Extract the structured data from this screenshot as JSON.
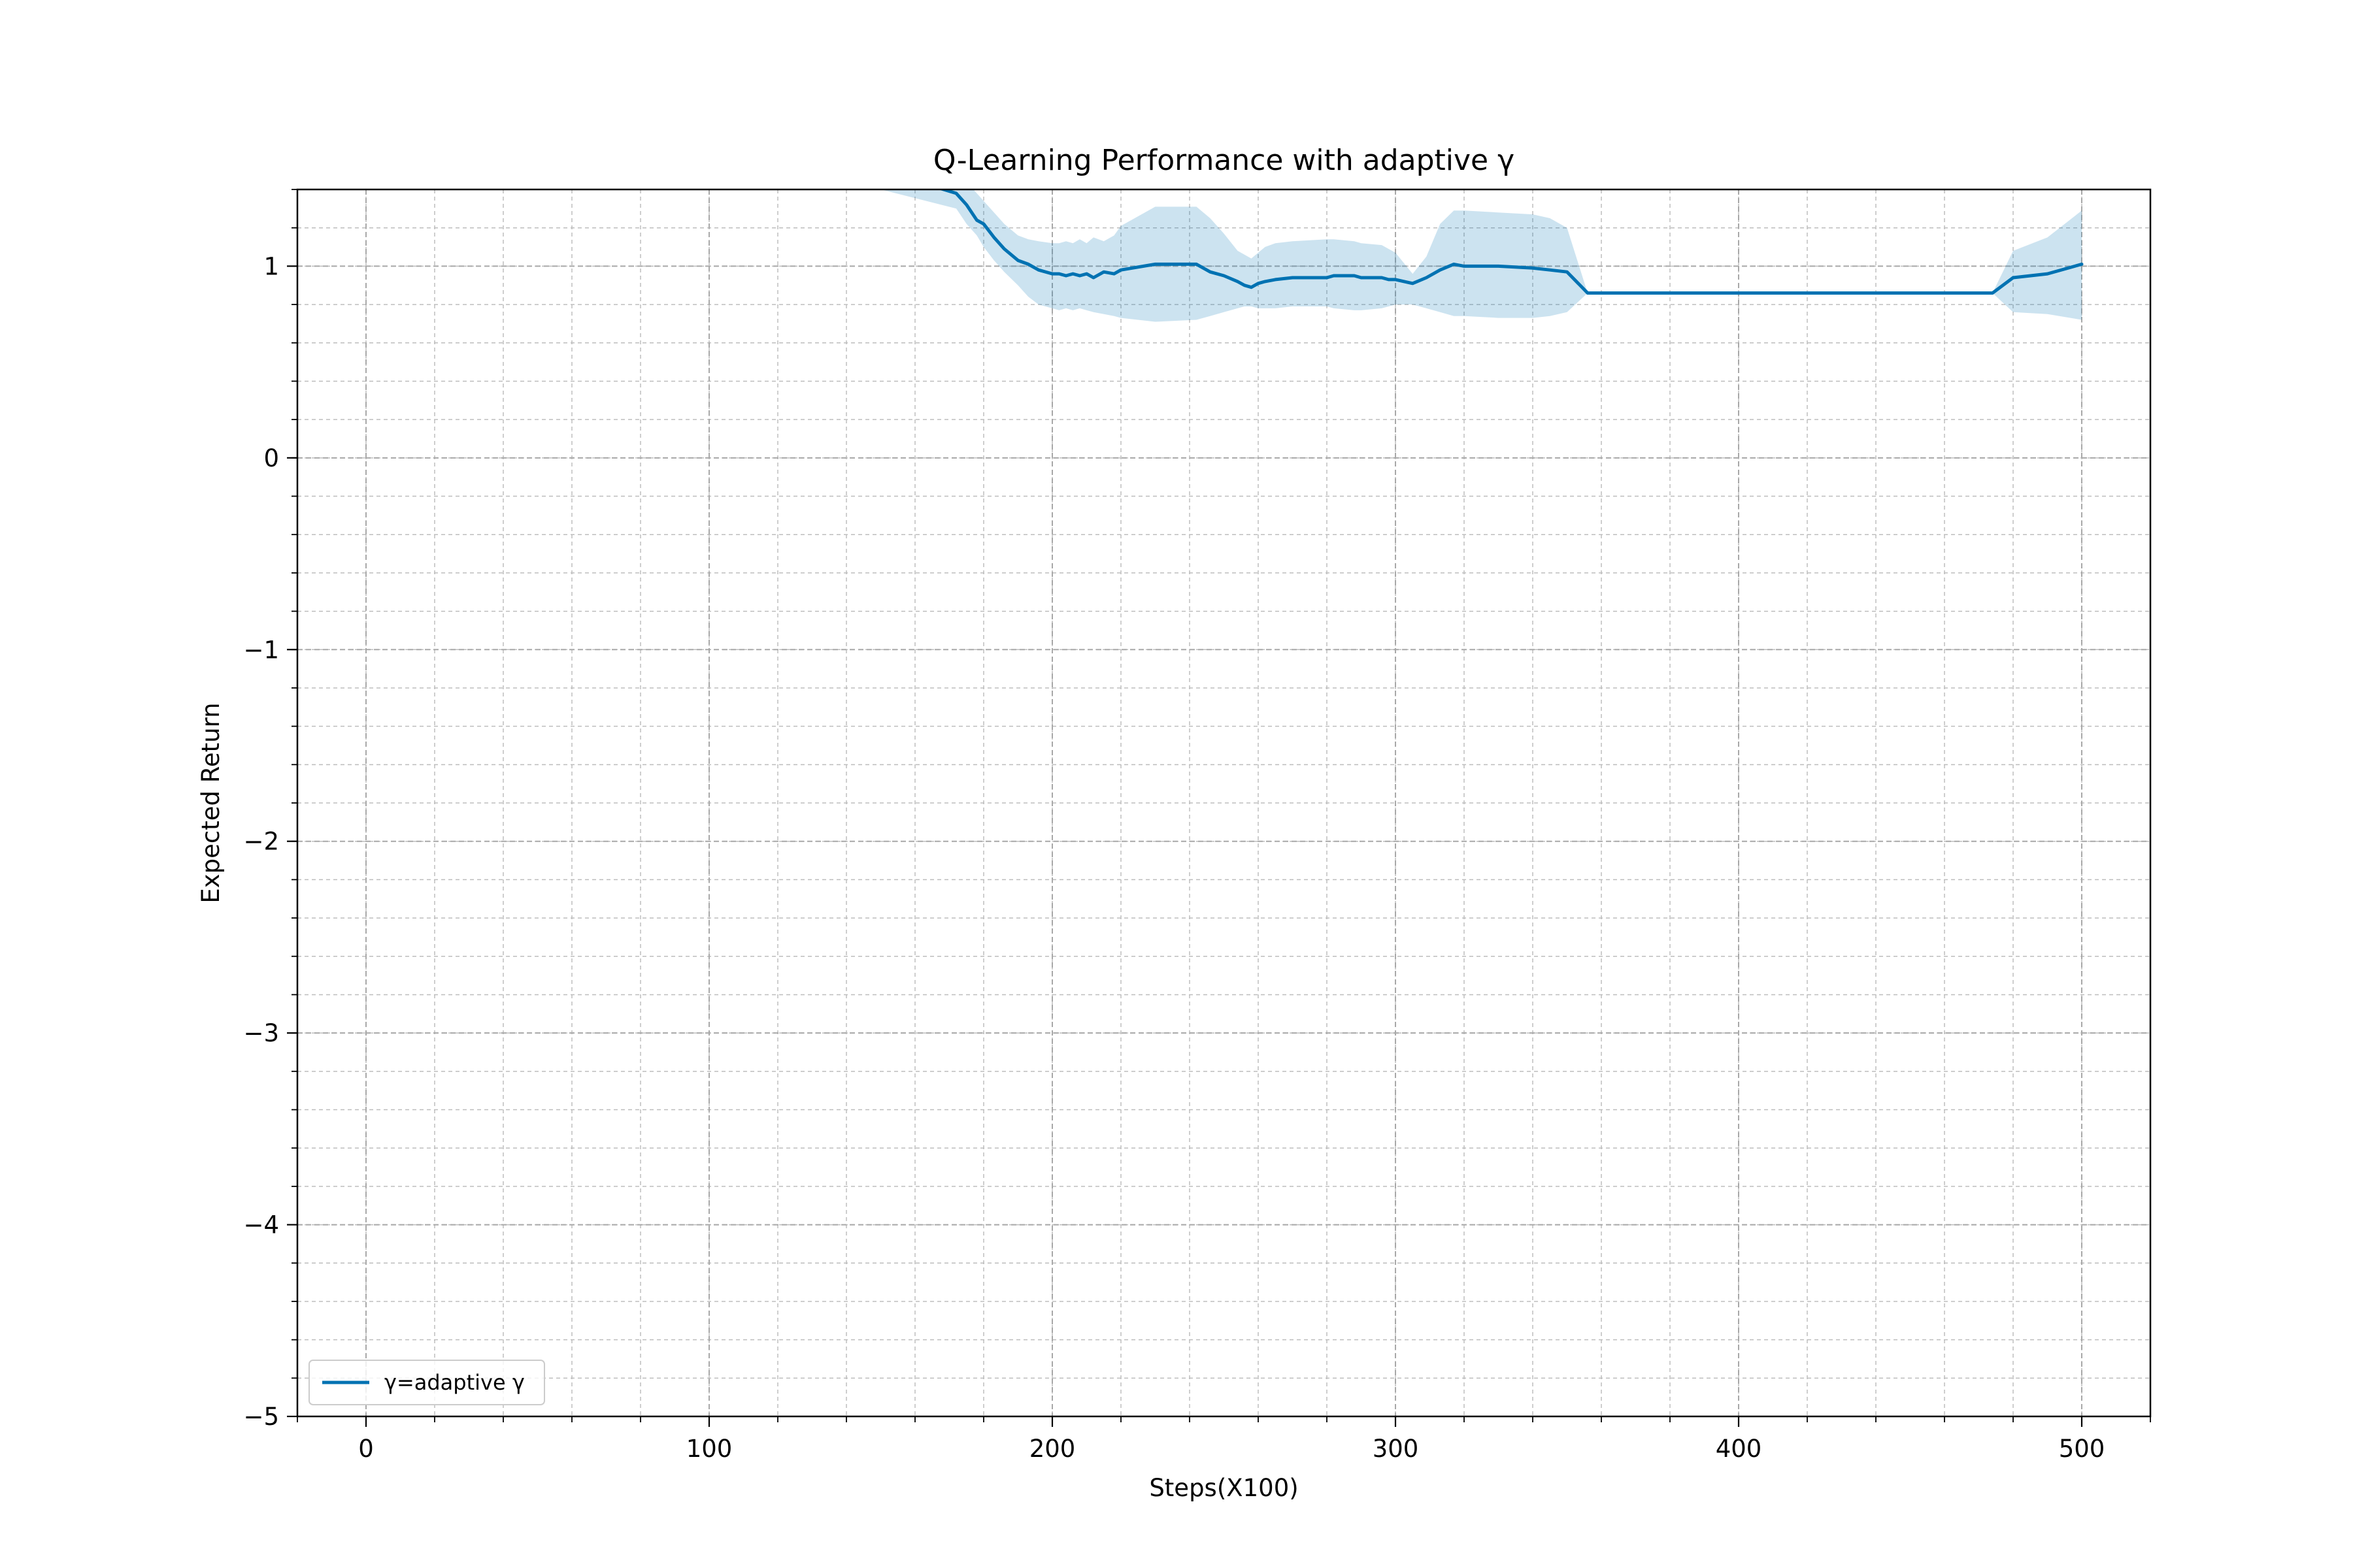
{
  "chart_data": {
    "type": "line",
    "title": "Q-Learning Performance with adaptive γ",
    "xlabel": "Steps(X100)",
    "ylabel": "Expected Return",
    "xlim": [
      -20,
      520
    ],
    "ylim": [
      -5,
      1.4
    ],
    "x_ticks": [
      0,
      100,
      200,
      300,
      400,
      500
    ],
    "x_tick_labels": [
      "0",
      "100",
      "200",
      "300",
      "400",
      "500"
    ],
    "y_ticks": [
      -5,
      -4,
      -3,
      -2,
      -1,
      0,
      1
    ],
    "y_tick_labels": [
      "−5",
      "−4",
      "−3",
      "−2",
      "−1",
      "0",
      "1"
    ],
    "x_minor_step": 20,
    "y_minor_step": 0.2,
    "grid": "major and minor, dashed",
    "legend": {
      "location": "lower-left",
      "entries": [
        "γ=adaptive γ"
      ]
    },
    "series": [
      {
        "name": "γ=adaptive γ",
        "color": "#0072B2",
        "band_color": "#0072B2",
        "x": [
          150,
          172,
          175,
          178,
          180,
          183,
          186,
          190,
          193,
          196,
          200,
          202,
          204,
          206,
          208,
          210,
          212,
          215,
          218,
          220,
          230,
          242,
          246,
          250,
          254,
          256,
          258,
          260,
          262,
          265,
          270,
          280,
          282,
          288,
          290,
          296,
          298,
          300,
          305,
          309,
          313,
          317,
          320,
          330,
          340,
          345,
          350,
          356,
          360,
          400,
          450,
          474,
          480,
          490,
          500
        ],
        "y": [
          1.5,
          1.38,
          1.32,
          1.24,
          1.22,
          1.15,
          1.09,
          1.03,
          1.01,
          0.98,
          0.96,
          0.96,
          0.95,
          0.96,
          0.95,
          0.96,
          0.94,
          0.97,
          0.96,
          0.98,
          1.01,
          1.01,
          0.97,
          0.95,
          0.92,
          0.9,
          0.89,
          0.91,
          0.92,
          0.93,
          0.94,
          0.94,
          0.95,
          0.95,
          0.94,
          0.94,
          0.93,
          0.93,
          0.91,
          0.94,
          0.98,
          1.01,
          1.0,
          1.0,
          0.99,
          0.98,
          0.97,
          0.86,
          0.86,
          0.86,
          0.86,
          0.86,
          0.94,
          0.96,
          1.01
        ],
        "lower": [
          1.4,
          1.3,
          1.22,
          1.16,
          1.1,
          1.03,
          0.97,
          0.9,
          0.84,
          0.8,
          0.78,
          0.77,
          0.78,
          0.77,
          0.78,
          0.77,
          0.76,
          0.75,
          0.74,
          0.73,
          0.71,
          0.72,
          0.74,
          0.76,
          0.78,
          0.79,
          0.79,
          0.78,
          0.78,
          0.78,
          0.79,
          0.79,
          0.78,
          0.77,
          0.77,
          0.78,
          0.79,
          0.8,
          0.8,
          0.78,
          0.76,
          0.74,
          0.74,
          0.73,
          0.73,
          0.74,
          0.76,
          0.86,
          0.86,
          0.86,
          0.86,
          0.86,
          0.76,
          0.75,
          0.72
        ],
        "upper": [
          1.6,
          1.48,
          1.44,
          1.38,
          1.34,
          1.28,
          1.22,
          1.16,
          1.14,
          1.13,
          1.12,
          1.12,
          1.13,
          1.12,
          1.14,
          1.12,
          1.15,
          1.13,
          1.16,
          1.21,
          1.31,
          1.31,
          1.25,
          1.17,
          1.08,
          1.06,
          1.04,
          1.07,
          1.1,
          1.12,
          1.13,
          1.14,
          1.14,
          1.13,
          1.12,
          1.11,
          1.09,
          1.07,
          0.96,
          1.05,
          1.22,
          1.29,
          1.29,
          1.28,
          1.27,
          1.25,
          1.2,
          0.86,
          0.86,
          0.86,
          0.86,
          0.86,
          1.08,
          1.15,
          1.29
        ]
      }
    ]
  }
}
